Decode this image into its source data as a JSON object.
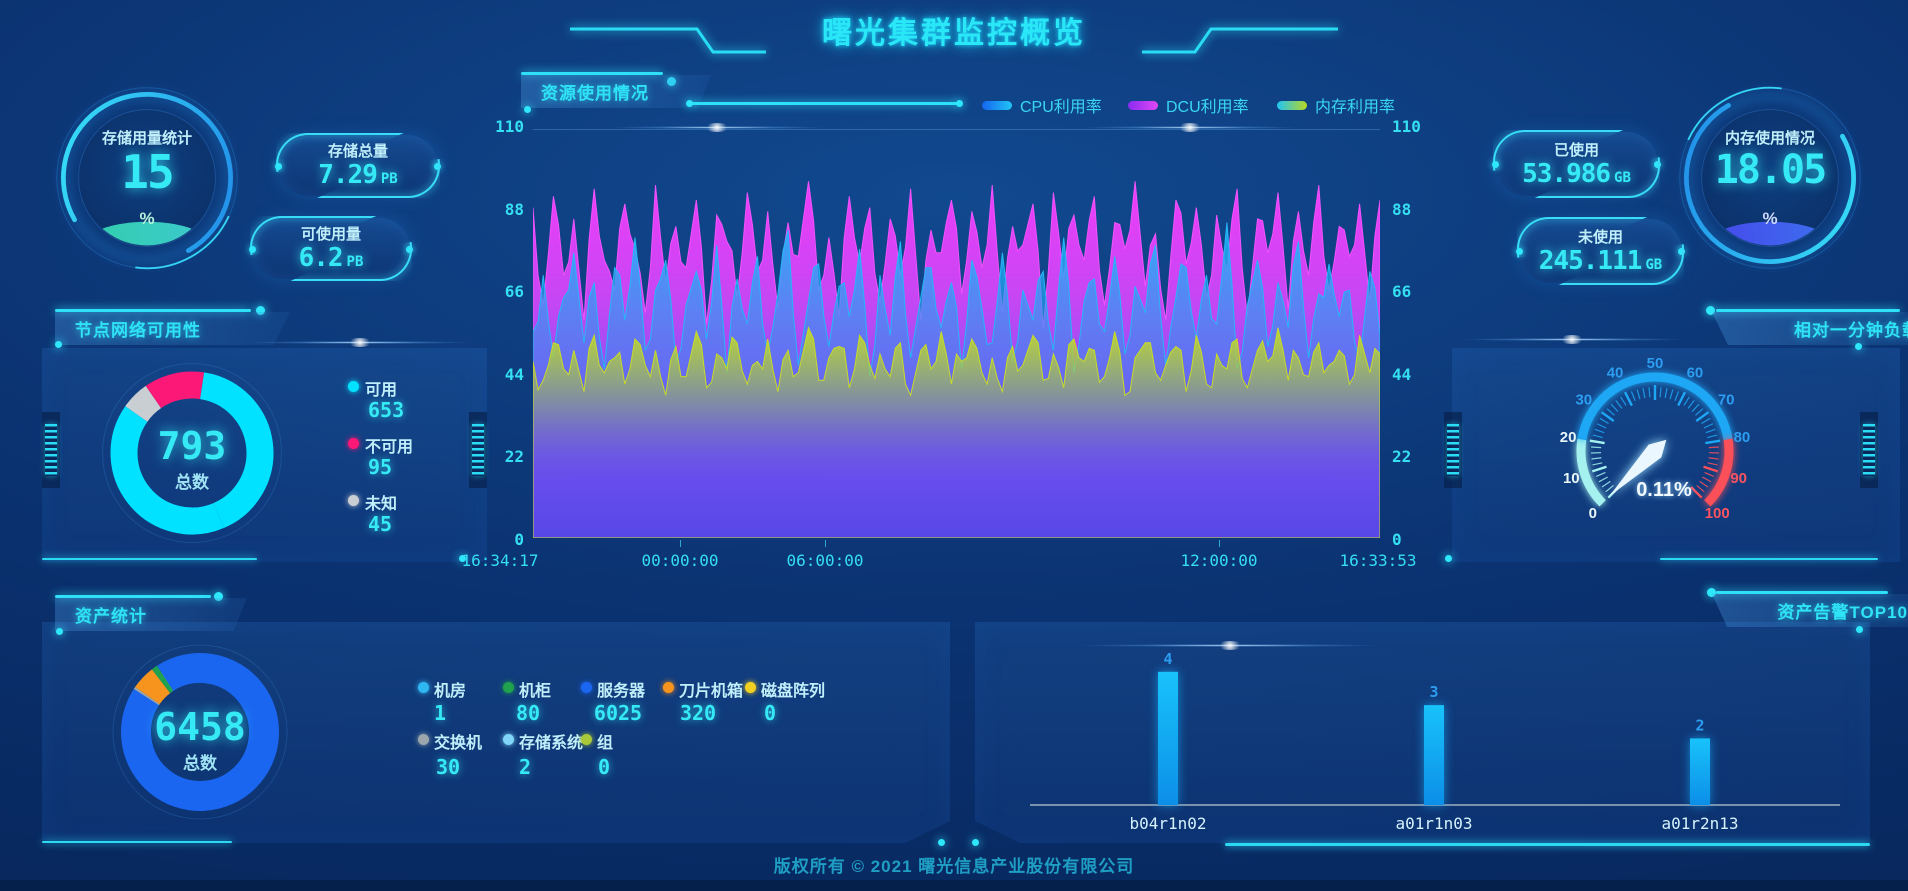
{
  "page": {
    "title": "曙光集群监控概览",
    "footer": "版权所有 © 2021 曙光信息产业股份有限公司"
  },
  "storage_ring": {
    "title": "存储用量统计",
    "value": "15",
    "unit": "%"
  },
  "storage_pills": {
    "total_label": "存储总量",
    "total_value": "7.29",
    "total_unit": "PB",
    "avail_label": "可使用量",
    "avail_value": "6.2",
    "avail_unit": "PB"
  },
  "memory_ring": {
    "title": "内存使用情况",
    "value": "18.05",
    "unit": "%"
  },
  "memory_pills": {
    "used_label": "已使用",
    "used_value": "53.986",
    "used_unit": "GB",
    "unused_label": "未使用",
    "unused_value": "245.111",
    "unused_unit": "GB"
  },
  "panels": {
    "node_network": "节点网络可用性",
    "resource": "资源使用情况",
    "load": "相对一分钟负载",
    "assets": "资产统计",
    "alerts": "资产告警TOP10"
  },
  "chart_data": [
    {
      "id": "resource_usage",
      "type": "area",
      "title": "资源使用情况",
      "ylim": [
        0,
        110
      ],
      "yticks": [
        0,
        22,
        44,
        66,
        88,
        110
      ],
      "xticks": [
        {
          "label": "16:34:17",
          "pos": 0.0
        },
        {
          "label": "00:00:00",
          "pos": 0.174
        },
        {
          "label": "06:00:00",
          "pos": 0.345
        },
        {
          "label": "12:00:00",
          "pos": 0.81
        },
        {
          "label": "16:33:53",
          "pos": 0.997
        }
      ],
      "legend_position": "top-right",
      "grid": false,
      "series": [
        {
          "name": "CPU利用率",
          "color": "#1f9bf5",
          "values": [
            55,
            70,
            48,
            64,
            76,
            52,
            68,
            45,
            72,
            58,
            80,
            50,
            66,
            74,
            47,
            62,
            71,
            53,
            78,
            44,
            69,
            57,
            75,
            49,
            65,
            82,
            46,
            63,
            73,
            51,
            67,
            59,
            77,
            43,
            70,
            54,
            79,
            48,
            64,
            72,
            56,
            68,
            45,
            74,
            61,
            52,
            76,
            47,
            66,
            58,
            71,
            50,
            80,
            44,
            63,
            69,
            55,
            75,
            49,
            67,
            60,
            78,
            46,
            64,
            72,
            53,
            70,
            57,
            84,
            45,
            62,
            74,
            51,
            68,
            56,
            79,
            48,
            65,
            73,
            59,
            66,
            47,
            71,
            54
          ]
        },
        {
          "name": "DCU利用率",
          "color": "#d93df2",
          "values": [
            88,
            62,
            91,
            70,
            85,
            58,
            93,
            74,
            66,
            89,
            77,
            60,
            94,
            68,
            83,
            72,
            90,
            57,
            86,
            79,
            64,
            92,
            71,
            87,
            61,
            84,
            75,
            95,
            66,
            80,
            59,
            91,
            73,
            88,
            63,
            85,
            70,
            93,
            58,
            82,
            76,
            90,
            65,
            87,
            72,
            94,
            60,
            83,
            78,
            89,
            56,
            92,
            69,
            86,
            74,
            91,
            62,
            84,
            77,
            95,
            67,
            81,
            58,
            90,
            73,
            88,
            64,
            86,
            71,
            93,
            59,
            85,
            76,
            92,
            61,
            87,
            70,
            94,
            66,
            83,
            75,
            89,
            63,
            90
          ]
        },
        {
          "name": "内存利用率",
          "color": "#bdd32a",
          "values": [
            47,
            42,
            52,
            45,
            50,
            39,
            54,
            44,
            48,
            41,
            53,
            46,
            50,
            38,
            51,
            43,
            55,
            40,
            49,
            45,
            52,
            41,
            47,
            53,
            39,
            50,
            44,
            56,
            42,
            48,
            51,
            40,
            54,
            46,
            49,
            43,
            52,
            38,
            50,
            45,
            55,
            41,
            47,
            53,
            44,
            48,
            39,
            51,
            46,
            54,
            42,
            49,
            40,
            53,
            47,
            50,
            43,
            55,
            38,
            48,
            52,
            44,
            46,
            51,
            39,
            54,
            41,
            49,
            45,
            53,
            40,
            50,
            47,
            56,
            42,
            48,
            43,
            52,
            46,
            50,
            41,
            54,
            44,
            49
          ]
        }
      ]
    },
    {
      "id": "node_network",
      "type": "pie",
      "total": "793",
      "total_label": "总数",
      "slices": [
        {
          "label": "可用",
          "value": 653,
          "color": "#00e2ff"
        },
        {
          "label": "不可用",
          "value": 95,
          "color": "#fb1877"
        },
        {
          "label": "未知",
          "value": 45,
          "color": "#c9ced3"
        }
      ]
    },
    {
      "id": "assets",
      "type": "pie",
      "total": "6458",
      "total_label": "总数",
      "slices": [
        {
          "label": "机房",
          "value": 1,
          "color": "#2fb7f2"
        },
        {
          "label": "机柜",
          "value": 80,
          "color": "#1fa14d"
        },
        {
          "label": "服务器",
          "value": 6025,
          "color": "#1b66f0"
        },
        {
          "label": "刀片机箱",
          "value": 320,
          "color": "#f7941e"
        },
        {
          "label": "磁盘阵列",
          "value": 0,
          "color": "#f2d021"
        },
        {
          "label": "交换机",
          "value": 30,
          "color": "#9ba6ad"
        },
        {
          "label": "存储系统",
          "value": 2,
          "color": "#7fd6f7"
        },
        {
          "label": "组",
          "value": 0,
          "color": "#a9c93a"
        }
      ]
    },
    {
      "id": "load_1min",
      "type": "gauge",
      "title": "相对一分钟负载",
      "min": 0,
      "max": 100,
      "value": 0.11,
      "value_label": "0.11%",
      "tick_labels": [
        0,
        10,
        20,
        30,
        40,
        50,
        60,
        70,
        80,
        90,
        100
      ],
      "segments": [
        {
          "from": 0,
          "to": 20,
          "color": "#a5f1ef"
        },
        {
          "from": 20,
          "to": 80,
          "color": "#1ea7f4"
        },
        {
          "from": 80,
          "to": 100,
          "color": "#fb5059"
        }
      ]
    },
    {
      "id": "alerts_top10",
      "type": "bar",
      "title": "资产告警TOP10",
      "categories": [
        "b04r1n02",
        "a01r1n03",
        "a01r2n13"
      ],
      "values": [
        4,
        3,
        2
      ],
      "bar_color": "#10aef5"
    }
  ]
}
